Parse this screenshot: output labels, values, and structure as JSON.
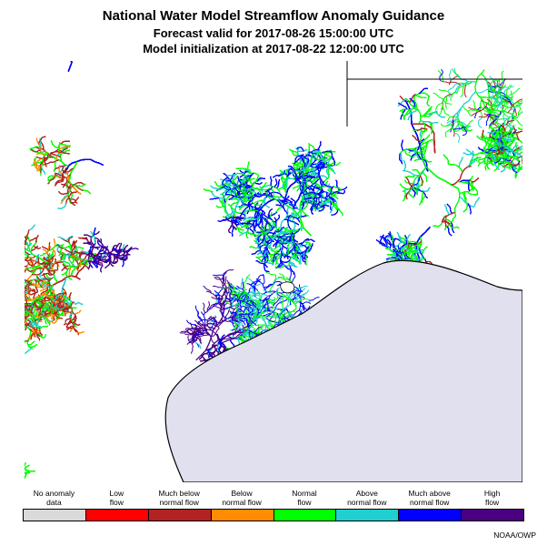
{
  "title": "National Water Model Streamflow Anomaly Guidance",
  "forecast_valid": "Forecast valid for 2017-08-26 15:00:00 UTC",
  "model_init": "Model initialization at 2017-08-22 12:00:00 UTC",
  "credit": "NOAA/OWP",
  "colors": {
    "water": "#e0e0ee",
    "coast": "#000000",
    "border": "#000000"
  },
  "legend": [
    {
      "line1": "No anomaly",
      "line2": "data",
      "color": "#d9d9d9"
    },
    {
      "line1": "Low",
      "line2": "flow",
      "color": "#ff0000"
    },
    {
      "line1": "Much below",
      "line2": "normal flow",
      "color": "#b22222"
    },
    {
      "line1": "Below",
      "line2": "normal flow",
      "color": "#ff8c00"
    },
    {
      "line1": "Normal",
      "line2": "flow",
      "color": "#00ff00"
    },
    {
      "line1": "Above",
      "line2": "normal flow",
      "color": "#20d0d0"
    },
    {
      "line1": "Much above",
      "line2": "normal flow",
      "color": "#0000ff"
    },
    {
      "line1": "High",
      "line2": "flow",
      "color": "#4b0082"
    }
  ]
}
